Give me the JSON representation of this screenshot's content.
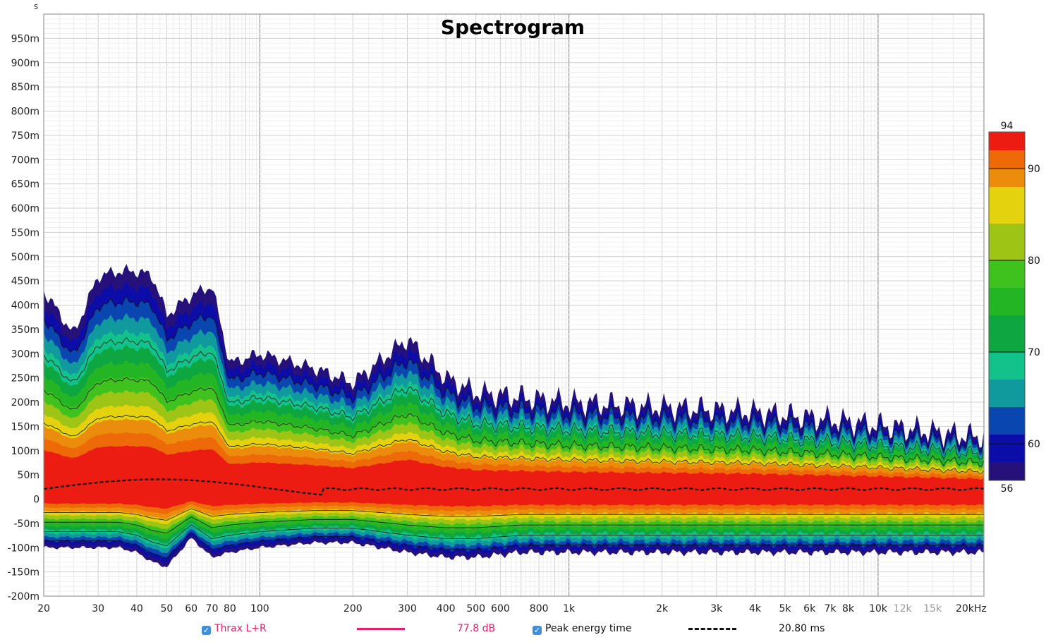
{
  "chart_data": {
    "type": "heatmap",
    "title": "Spectrogram",
    "y_unit": "s",
    "x_scale": "log",
    "x_range_hz": [
      20,
      22000
    ],
    "y_range_s": [
      -0.2,
      1.0
    ],
    "x_ticks": [
      {
        "value": 20,
        "label": "20"
      },
      {
        "value": 30,
        "label": "30"
      },
      {
        "value": 40,
        "label": "40"
      },
      {
        "value": 50,
        "label": "50"
      },
      {
        "value": 60,
        "label": "60"
      },
      {
        "value": 70,
        "label": "70"
      },
      {
        "value": 80,
        "label": "80"
      },
      {
        "value": 100,
        "label": "100"
      },
      {
        "value": 200,
        "label": "200"
      },
      {
        "value": 300,
        "label": "300"
      },
      {
        "value": 400,
        "label": "400"
      },
      {
        "value": 500,
        "label": "500"
      },
      {
        "value": 600,
        "label": "600"
      },
      {
        "value": 800,
        "label": "800"
      },
      {
        "value": 1000,
        "label": "1k"
      },
      {
        "value": 2000,
        "label": "2k"
      },
      {
        "value": 3000,
        "label": "3k"
      },
      {
        "value": 4000,
        "label": "4k"
      },
      {
        "value": 5000,
        "label": "5k"
      },
      {
        "value": 6000,
        "label": "6k"
      },
      {
        "value": 7000,
        "label": "7k"
      },
      {
        "value": 8000,
        "label": "8k"
      },
      {
        "value": 10000,
        "label": "10k"
      },
      {
        "value": 12000,
        "label": "12k",
        "muted": true
      },
      {
        "value": 15000,
        "label": "15k",
        "muted": true
      },
      {
        "value": 20000,
        "label": "20kHz"
      }
    ],
    "y_ticks": [
      {
        "value": 0.95,
        "label": "950m"
      },
      {
        "value": 0.9,
        "label": "900m"
      },
      {
        "value": 0.85,
        "label": "850m"
      },
      {
        "value": 0.8,
        "label": "800m"
      },
      {
        "value": 0.75,
        "label": "750m"
      },
      {
        "value": 0.7,
        "label": "700m"
      },
      {
        "value": 0.65,
        "label": "650m"
      },
      {
        "value": 0.6,
        "label": "600m"
      },
      {
        "value": 0.55,
        "label": "550m"
      },
      {
        "value": 0.5,
        "label": "500m"
      },
      {
        "value": 0.45,
        "label": "450m"
      },
      {
        "value": 0.4,
        "label": "400m"
      },
      {
        "value": 0.35,
        "label": "350m"
      },
      {
        "value": 0.3,
        "label": "300m"
      },
      {
        "value": 0.25,
        "label": "250m"
      },
      {
        "value": 0.2,
        "label": "200m"
      },
      {
        "value": 0.15,
        "label": "150m"
      },
      {
        "value": 0.1,
        "label": "100m"
      },
      {
        "value": 0.05,
        "label": "50m"
      },
      {
        "value": 0.0,
        "label": "0"
      },
      {
        "value": -0.05,
        "label": "-50m"
      },
      {
        "value": -0.1,
        "label": "-100m"
      },
      {
        "value": -0.15,
        "label": "-150m"
      },
      {
        "value": -0.2,
        "label": "-200m"
      }
    ],
    "colorbar": {
      "min_db": 56,
      "max_db": 94,
      "labels": [
        {
          "value": 94,
          "label": "94"
        },
        {
          "value": 90,
          "label": "90"
        },
        {
          "value": 80,
          "label": "80"
        },
        {
          "value": 70,
          "label": "70"
        },
        {
          "value": 60,
          "label": "60"
        },
        {
          "value": 56,
          "label": "56"
        }
      ],
      "bands": [
        {
          "from": 56,
          "to": 58,
          "color": "#26117a"
        },
        {
          "from": 58,
          "to": 61,
          "color": "#0c0da8"
        },
        {
          "from": 61,
          "to": 64,
          "color": "#0a46b0"
        },
        {
          "from": 64,
          "to": 67,
          "color": "#109a9e"
        },
        {
          "from": 67,
          "to": 70,
          "color": "#13c28a"
        },
        {
          "from": 70,
          "to": 74,
          "color": "#0ea640"
        },
        {
          "from": 74,
          "to": 77,
          "color": "#24b524"
        },
        {
          "from": 77,
          "to": 80,
          "color": "#3fc21e"
        },
        {
          "from": 80,
          "to": 84,
          "color": "#9ec416"
        },
        {
          "from": 84,
          "to": 88,
          "color": "#e5d20e"
        },
        {
          "from": 88,
          "to": 90,
          "color": "#eb8c0c"
        },
        {
          "from": 90,
          "to": 92,
          "color": "#ee6a08"
        },
        {
          "from": 92,
          "to": 94,
          "color": "#ec1c12"
        }
      ]
    },
    "peak_energy_time_ms": 20.8,
    "decay_envelope": {
      "note": "approximate upper edge of visible energy (s) by frequency (Hz)",
      "freq_hz": [
        20,
        25,
        30,
        35,
        40,
        45,
        50,
        60,
        70,
        80,
        100,
        150,
        200,
        300,
        400,
        500,
        700,
        1000,
        2000,
        4000,
        8000,
        20000
      ],
      "top_s": [
        0.43,
        0.34,
        0.46,
        0.47,
        0.47,
        0.46,
        0.38,
        0.42,
        0.44,
        0.28,
        0.3,
        0.27,
        0.24,
        0.33,
        0.25,
        0.22,
        0.21,
        0.2,
        0.19,
        0.18,
        0.16,
        0.13
      ],
      "bottom_s": [
        -0.1,
        -0.1,
        -0.1,
        -0.1,
        -0.11,
        -0.13,
        -0.14,
        -0.08,
        -0.12,
        -0.11,
        -0.1,
        -0.09,
        -0.09,
        -0.11,
        -0.12,
        -0.12,
        -0.11,
        -0.11,
        -0.11,
        -0.11,
        -0.11,
        -0.11
      ]
    }
  },
  "legend": {
    "series_label": "Thrax L+R",
    "series_level": "77.8 dB",
    "series_color": "#e0206a",
    "peak_label": "Peak energy time",
    "peak_value": "20.80 ms",
    "check_mark": "✓"
  }
}
